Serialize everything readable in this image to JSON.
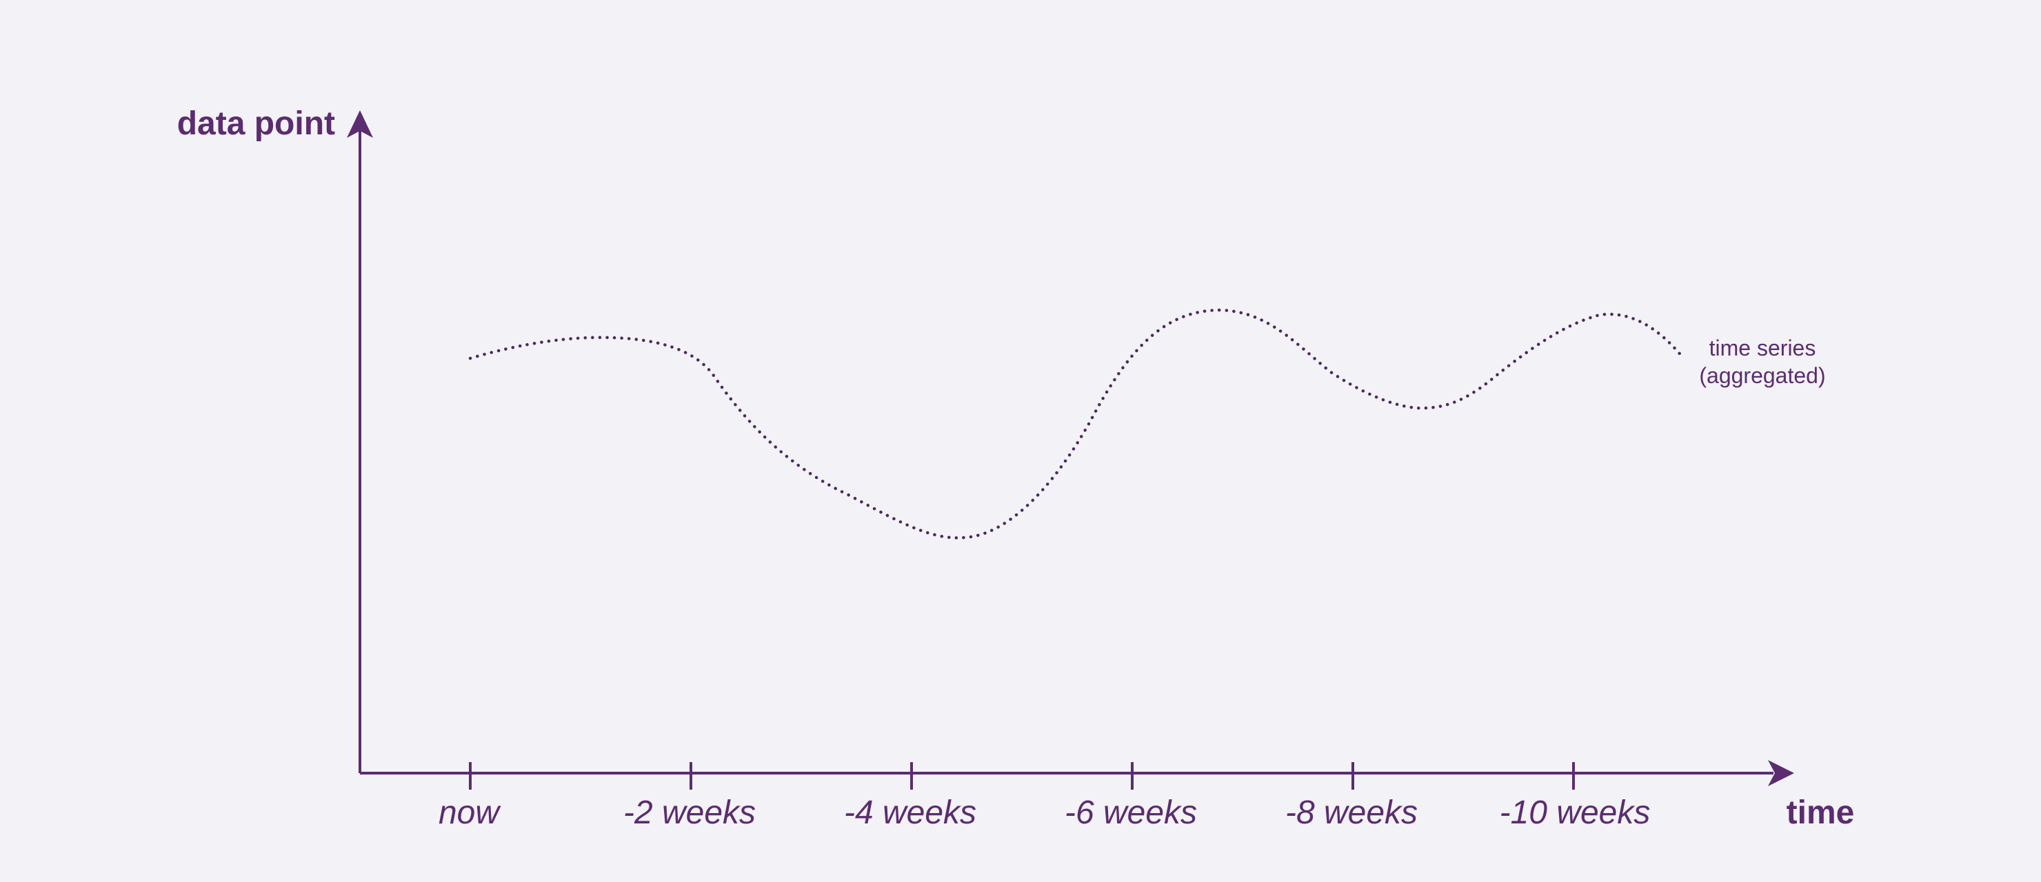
{
  "colors": {
    "background": "#f3f2f6",
    "accent": "#5b2c6f",
    "series_line": "#4a2a5e"
  },
  "axes": {
    "y_title": "data point",
    "x_title": "time",
    "x_ticks": [
      "now",
      "-2 weeks",
      "-4 weeks",
      "-6 weeks",
      "-8 weeks",
      "-10 weeks"
    ]
  },
  "series": {
    "label_line1": "time series",
    "label_line2": "(aggregated)",
    "style": "dotted"
  }
}
